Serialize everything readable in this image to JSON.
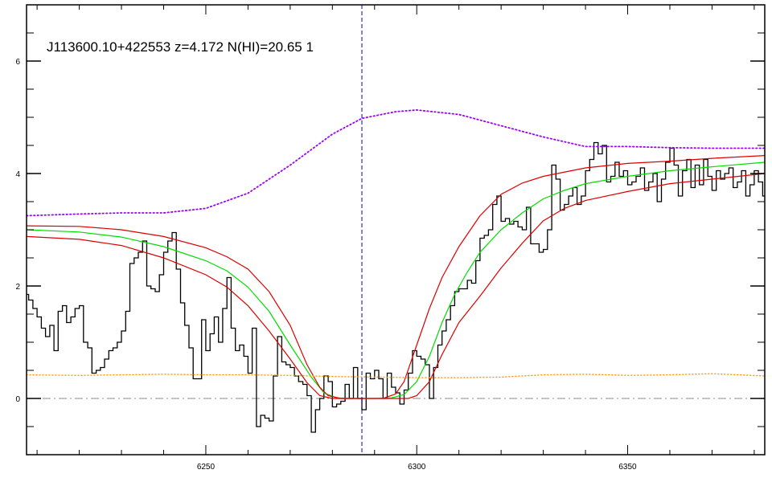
{
  "chart_data": {
    "type": "line",
    "title": "J113600.10+422553 z=4.172 N(HI)=20.65 1",
    "xlabel": "",
    "ylabel": "",
    "xlim": [
      6207.5,
      6382.5
    ],
    "ylim": [
      -1.0,
      7.0
    ],
    "x_ticks": [
      6250,
      6300,
      6350
    ],
    "y_ticks": [
      0,
      2,
      4,
      6
    ],
    "x_minor_step": 10,
    "y_minor_step": 0.5,
    "grid": false,
    "vertical_marker_x": 6287.0,
    "zero_line_y": 0,
    "colors": {
      "flux": "#000000",
      "fit": "#00dd00",
      "fit_bounds": "#dd0000",
      "continuum": "#9900ff",
      "error": "#ff9900",
      "vertical_marker": "#0000cc",
      "zero_line": "#888888"
    },
    "series": [
      {
        "key": "flux",
        "style": "step",
        "points": [
          [
            6207.5,
            1.85
          ],
          [
            6208.5,
            1.75
          ],
          [
            6209.5,
            1.6
          ],
          [
            6210.5,
            1.45
          ],
          [
            6211.5,
            1.25
          ],
          [
            6212.5,
            1.1
          ],
          [
            6213.5,
            1.3
          ],
          [
            6214.5,
            0.85
          ],
          [
            6215.5,
            1.55
          ],
          [
            6216.5,
            1.65
          ],
          [
            6217.5,
            1.35
          ],
          [
            6218.5,
            1.45
          ],
          [
            6219.5,
            1.6
          ],
          [
            6220.5,
            1.65
          ],
          [
            6221.5,
            1.0
          ],
          [
            6222.5,
            0.9
          ],
          [
            6223.5,
            0.45
          ],
          [
            6224.5,
            0.5
          ],
          [
            6225.5,
            0.55
          ],
          [
            6226.5,
            0.7
          ],
          [
            6227.5,
            0.85
          ],
          [
            6228.5,
            0.9
          ],
          [
            6229.5,
            1.0
          ],
          [
            6230.5,
            1.2
          ],
          [
            6231.5,
            1.55
          ],
          [
            6232.5,
            2.4
          ],
          [
            6233.5,
            2.5
          ],
          [
            6234.5,
            2.6
          ],
          [
            6235.5,
            2.8
          ],
          [
            6236.5,
            2.0
          ],
          [
            6237.5,
            1.95
          ],
          [
            6238.5,
            1.9
          ],
          [
            6239.5,
            2.2
          ],
          [
            6240.5,
            2.6
          ],
          [
            6241.5,
            2.8
          ],
          [
            6242.5,
            2.95
          ],
          [
            6243.5,
            2.3
          ],
          [
            6244.5,
            1.7
          ],
          [
            6245.5,
            1.3
          ],
          [
            6246.5,
            0.9
          ],
          [
            6247.5,
            0.35
          ],
          [
            6248.5,
            0.35
          ],
          [
            6249.5,
            1.4
          ],
          [
            6250.5,
            0.85
          ],
          [
            6251.5,
            1.15
          ],
          [
            6252.5,
            1.45
          ],
          [
            6253.5,
            1.0
          ],
          [
            6254.5,
            1.6
          ],
          [
            6255.5,
            2.15
          ],
          [
            6256.5,
            1.25
          ],
          [
            6257.5,
            0.85
          ],
          [
            6258.5,
            0.95
          ],
          [
            6259.5,
            0.75
          ],
          [
            6260.5,
            0.45
          ],
          [
            6261.5,
            1.25
          ],
          [
            6262.5,
            -0.5
          ],
          [
            6263.5,
            -0.3
          ],
          [
            6264.5,
            -0.35
          ],
          [
            6265.5,
            -0.4
          ],
          [
            6266.5,
            0.4
          ],
          [
            6267.5,
            1.1
          ],
          [
            6268.5,
            0.65
          ],
          [
            6269.5,
            0.6
          ],
          [
            6270.5,
            0.55
          ],
          [
            6271.5,
            0.4
          ],
          [
            6272.5,
            0.3
          ],
          [
            6273.5,
            0.25
          ],
          [
            6274.5,
            0.05
          ],
          [
            6275.5,
            -0.6
          ],
          [
            6276.5,
            -0.2
          ],
          [
            6277.5,
            0.0
          ],
          [
            6278.5,
            0.4
          ],
          [
            6279.5,
            0.3
          ],
          [
            6280.5,
            -0.15
          ],
          [
            6281.5,
            -0.1
          ],
          [
            6282.5,
            -0.05
          ],
          [
            6283.5,
            0.25
          ],
          [
            6284.5,
            0.0
          ],
          [
            6285.5,
            0.55
          ],
          [
            6286.5,
            0.0
          ],
          [
            6287.5,
            -0.2
          ],
          [
            6288.5,
            0.45
          ],
          [
            6289.5,
            0.35
          ],
          [
            6290.5,
            0.5
          ],
          [
            6291.5,
            0.35
          ],
          [
            6292.5,
            0.0
          ],
          [
            6293.5,
            0.45
          ],
          [
            6294.5,
            0.2
          ],
          [
            6295.5,
            0.1
          ],
          [
            6296.5,
            -0.1
          ],
          [
            6297.5,
            0.15
          ],
          [
            6298.5,
            0.45
          ],
          [
            6299.5,
            0.85
          ],
          [
            6300.5,
            0.75
          ],
          [
            6301.5,
            0.7
          ],
          [
            6302.5,
            0.6
          ],
          [
            6303.5,
            0.0
          ],
          [
            6304.5,
            0.55
          ],
          [
            6305.5,
            0.95
          ],
          [
            6306.5,
            1.2
          ],
          [
            6307.5,
            1.4
          ],
          [
            6308.5,
            1.65
          ],
          [
            6309.5,
            1.9
          ],
          [
            6310.5,
            1.95
          ],
          [
            6311.5,
            1.95
          ],
          [
            6312.5,
            2.1
          ],
          [
            6313.5,
            2.05
          ],
          [
            6314.5,
            2.45
          ],
          [
            6315.5,
            2.85
          ],
          [
            6316.5,
            2.9
          ],
          [
            6317.5,
            3.0
          ],
          [
            6318.5,
            3.45
          ],
          [
            6319.5,
            3.6
          ],
          [
            6320.5,
            3.15
          ],
          [
            6321.5,
            3.2
          ],
          [
            6322.5,
            3.1
          ],
          [
            6323.5,
            3.15
          ],
          [
            6324.5,
            3.05
          ],
          [
            6325.5,
            3.0
          ],
          [
            6326.5,
            3.4
          ],
          [
            6327.5,
            2.75
          ],
          [
            6328.5,
            2.75
          ],
          [
            6329.5,
            2.6
          ],
          [
            6330.5,
            2.65
          ],
          [
            6331.5,
            3.0
          ],
          [
            6332.5,
            4.15
          ],
          [
            6333.5,
            3.9
          ],
          [
            6334.5,
            3.35
          ],
          [
            6335.5,
            3.45
          ],
          [
            6336.5,
            3.6
          ],
          [
            6337.5,
            3.75
          ],
          [
            6338.5,
            3.45
          ],
          [
            6339.5,
            3.6
          ],
          [
            6340.5,
            4.05
          ],
          [
            6341.5,
            4.25
          ],
          [
            6342.5,
            4.55
          ],
          [
            6343.5,
            4.35
          ],
          [
            6344.5,
            4.5
          ],
          [
            6345.5,
            3.85
          ],
          [
            6346.5,
            3.95
          ],
          [
            6347.5,
            4.2
          ],
          [
            6348.5,
            3.95
          ],
          [
            6349.5,
            4.05
          ],
          [
            6350.5,
            3.8
          ],
          [
            6351.5,
            3.85
          ],
          [
            6352.5,
            3.95
          ],
          [
            6353.5,
            4.1
          ],
          [
            6354.5,
            3.7
          ],
          [
            6355.5,
            3.85
          ],
          [
            6356.5,
            4.0
          ],
          [
            6357.5,
            3.5
          ],
          [
            6358.5,
            3.9
          ],
          [
            6359.5,
            4.2
          ],
          [
            6360.5,
            4.45
          ],
          [
            6361.5,
            4.15
          ],
          [
            6362.5,
            3.6
          ],
          [
            6363.5,
            4.05
          ],
          [
            6364.5,
            4.25
          ],
          [
            6365.5,
            3.75
          ],
          [
            6366.5,
            4.15
          ],
          [
            6367.5,
            3.8
          ],
          [
            6368.5,
            4.25
          ],
          [
            6369.5,
            3.95
          ],
          [
            6370.5,
            3.7
          ],
          [
            6371.5,
            4.05
          ],
          [
            6372.5,
            3.9
          ],
          [
            6373.5,
            4.0
          ],
          [
            6374.5,
            4.1
          ],
          [
            6375.5,
            3.75
          ],
          [
            6376.5,
            3.85
          ],
          [
            6377.5,
            4.05
          ],
          [
            6378.5,
            3.6
          ],
          [
            6379.5,
            3.8
          ],
          [
            6380.5,
            4.05
          ],
          [
            6381.5,
            3.85
          ],
          [
            6382.5,
            3.6
          ]
        ]
      },
      {
        "key": "fit",
        "style": "line",
        "points": [
          [
            6207.5,
            3.0
          ],
          [
            6220,
            2.96
          ],
          [
            6230,
            2.87
          ],
          [
            6240,
            2.7
          ],
          [
            6250,
            2.45
          ],
          [
            6255,
            2.27
          ],
          [
            6260,
            1.98
          ],
          [
            6265,
            1.55
          ],
          [
            6270,
            0.95
          ],
          [
            6275,
            0.38
          ],
          [
            6278,
            0.1
          ],
          [
            6281,
            0.01
          ],
          [
            6285,
            0.0
          ],
          [
            6290,
            0.0
          ],
          [
            6294,
            0.01
          ],
          [
            6297,
            0.07
          ],
          [
            6300,
            0.3
          ],
          [
            6303,
            0.75
          ],
          [
            6306,
            1.35
          ],
          [
            6309,
            1.85
          ],
          [
            6312,
            2.25
          ],
          [
            6315,
            2.6
          ],
          [
            6320,
            3.0
          ],
          [
            6325,
            3.3
          ],
          [
            6330,
            3.55
          ],
          [
            6335,
            3.7
          ],
          [
            6340,
            3.82
          ],
          [
            6350,
            3.95
          ],
          [
            6360,
            4.05
          ],
          [
            6370,
            4.12
          ],
          [
            6382.5,
            4.2
          ]
        ]
      },
      {
        "key": "fit_upper",
        "style": "line",
        "points": [
          [
            6207.5,
            3.07
          ],
          [
            6220,
            3.06
          ],
          [
            6230,
            3.0
          ],
          [
            6240,
            2.88
          ],
          [
            6250,
            2.68
          ],
          [
            6255,
            2.52
          ],
          [
            6260,
            2.3
          ],
          [
            6265,
            1.9
          ],
          [
            6270,
            1.3
          ],
          [
            6274,
            0.6
          ],
          [
            6277,
            0.2
          ],
          [
            6279,
            0.05
          ],
          [
            6282,
            0.0
          ],
          [
            6292,
            0.0
          ],
          [
            6295,
            0.08
          ],
          [
            6297,
            0.3
          ],
          [
            6300,
            0.95
          ],
          [
            6303,
            1.6
          ],
          [
            6306,
            2.15
          ],
          [
            6310,
            2.7
          ],
          [
            6315,
            3.25
          ],
          [
            6320,
            3.63
          ],
          [
            6325,
            3.83
          ],
          [
            6330,
            3.95
          ],
          [
            6340,
            4.1
          ],
          [
            6350,
            4.18
          ],
          [
            6360,
            4.22
          ],
          [
            6370,
            4.27
          ],
          [
            6382.5,
            4.32
          ]
        ]
      },
      {
        "key": "fit_lower",
        "style": "line",
        "points": [
          [
            6207.5,
            2.88
          ],
          [
            6220,
            2.83
          ],
          [
            6230,
            2.72
          ],
          [
            6240,
            2.5
          ],
          [
            6250,
            2.2
          ],
          [
            6255,
            1.98
          ],
          [
            6260,
            1.65
          ],
          [
            6265,
            1.2
          ],
          [
            6270,
            0.7
          ],
          [
            6274,
            0.28
          ],
          [
            6277,
            0.05
          ],
          [
            6280,
            0.0
          ],
          [
            6298,
            0.0
          ],
          [
            6300,
            0.05
          ],
          [
            6303,
            0.3
          ],
          [
            6306,
            0.78
          ],
          [
            6310,
            1.35
          ],
          [
            6315,
            1.82
          ],
          [
            6320,
            2.32
          ],
          [
            6325,
            2.76
          ],
          [
            6330,
            3.16
          ],
          [
            6335,
            3.38
          ],
          [
            6340,
            3.52
          ],
          [
            6350,
            3.68
          ],
          [
            6360,
            3.82
          ],
          [
            6370,
            3.9
          ],
          [
            6382.5,
            4.0
          ]
        ]
      },
      {
        "key": "continuum",
        "style": "dotted",
        "points": [
          [
            6207.5,
            3.25
          ],
          [
            6220,
            3.28
          ],
          [
            6230,
            3.3
          ],
          [
            6240,
            3.3
          ],
          [
            6250,
            3.38
          ],
          [
            6260,
            3.65
          ],
          [
            6270,
            4.15
          ],
          [
            6280,
            4.7
          ],
          [
            6287,
            4.98
          ],
          [
            6295,
            5.1
          ],
          [
            6300,
            5.13
          ],
          [
            6310,
            5.05
          ],
          [
            6320,
            4.85
          ],
          [
            6330,
            4.65
          ],
          [
            6340,
            4.48
          ],
          [
            6350,
            4.48
          ],
          [
            6360,
            4.46
          ],
          [
            6370,
            4.45
          ],
          [
            6382.5,
            4.45
          ]
        ]
      },
      {
        "key": "error",
        "style": "dotted",
        "points": [
          [
            6207.5,
            0.42
          ],
          [
            6220,
            0.41
          ],
          [
            6230,
            0.42
          ],
          [
            6240,
            0.43
          ],
          [
            6250,
            0.42
          ],
          [
            6260,
            0.42
          ],
          [
            6270,
            0.41
          ],
          [
            6280,
            0.39
          ],
          [
            6290,
            0.38
          ],
          [
            6300,
            0.37
          ],
          [
            6310,
            0.37
          ],
          [
            6320,
            0.38
          ],
          [
            6330,
            0.42
          ],
          [
            6340,
            0.43
          ],
          [
            6350,
            0.41
          ],
          [
            6360,
            0.42
          ],
          [
            6370,
            0.44
          ],
          [
            6382.5,
            0.4
          ]
        ]
      }
    ]
  }
}
